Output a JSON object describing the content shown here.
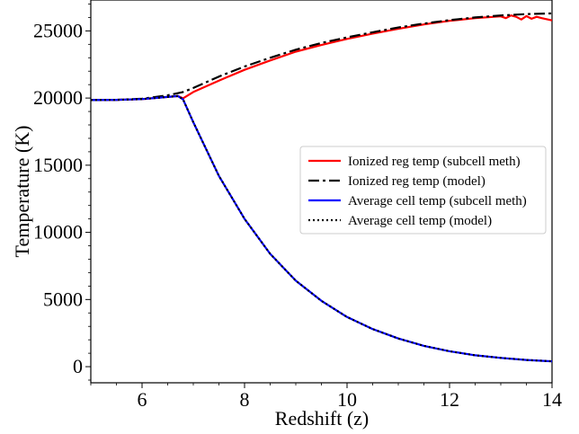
{
  "chart_data": {
    "type": "line",
    "title": "",
    "xlabel": "Redshift (z)",
    "ylabel": "Temperature (K)",
    "xlim": [
      5,
      14
    ],
    "ylim": [
      -1200,
      27300
    ],
    "x_ticks": [
      6,
      8,
      10,
      12,
      14
    ],
    "y_ticks": [
      0,
      5000,
      10000,
      15000,
      20000,
      25000
    ],
    "grid": false,
    "legend_position": "center-right",
    "series": [
      {
        "name": "Ionized reg temp (subcell meth)",
        "color": "#ff0000",
        "style": "solid",
        "x": [
          5.0,
          5.5,
          6.0,
          6.5,
          6.7,
          6.8,
          7.0,
          7.5,
          8.0,
          8.5,
          9.0,
          9.5,
          10.0,
          10.5,
          11.0,
          11.5,
          12.0,
          12.5,
          13.0,
          13.1,
          13.2,
          13.3,
          13.4,
          13.5,
          13.6,
          13.7,
          13.8,
          14.0
        ],
        "y": [
          19850,
          19870,
          19920,
          20080,
          20150,
          19980,
          20450,
          21300,
          22100,
          22800,
          23450,
          23950,
          24400,
          24800,
          25150,
          25480,
          25750,
          25950,
          26080,
          25950,
          26150,
          26050,
          25850,
          26100,
          25900,
          26050,
          25950,
          25780
        ]
      },
      {
        "name": "Ionized reg temp (model)",
        "color": "#000000",
        "style": "dashdot",
        "x": [
          5.0,
          5.5,
          6.0,
          6.5,
          6.8,
          7.0,
          7.5,
          8.0,
          8.5,
          9.0,
          9.5,
          10.0,
          10.5,
          11.0,
          11.5,
          12.0,
          12.5,
          13.0,
          13.5,
          14.0
        ],
        "y": [
          19850,
          19870,
          19950,
          20200,
          20450,
          20750,
          21600,
          22350,
          23000,
          23600,
          24100,
          24520,
          24900,
          25250,
          25550,
          25800,
          26000,
          26150,
          26250,
          26300
        ]
      },
      {
        "name": "Average cell temp (subcell meth)",
        "color": "#0000ff",
        "style": "solid",
        "x": [
          5.0,
          5.5,
          6.0,
          6.5,
          6.7,
          6.8,
          7.0,
          7.5,
          8.0,
          8.5,
          9.0,
          9.5,
          10.0,
          10.5,
          11.0,
          11.5,
          12.0,
          12.5,
          13.0,
          13.5,
          14.0
        ],
        "y": [
          19850,
          19870,
          19920,
          20080,
          20150,
          19900,
          18200,
          14200,
          11000,
          8400,
          6400,
          4900,
          3700,
          2800,
          2100,
          1550,
          1150,
          850,
          650,
          500,
          400
        ]
      },
      {
        "name": "Average cell temp (model)",
        "color": "#000000",
        "style": "dotted",
        "x": [
          5.0,
          5.5,
          6.0,
          6.5,
          6.7,
          6.8,
          7.0,
          7.5,
          8.0,
          8.5,
          9.0,
          9.5,
          10.0,
          10.5,
          11.0,
          11.5,
          12.0,
          12.5,
          13.0,
          13.5,
          14.0
        ],
        "y": [
          19850,
          19870,
          19920,
          20080,
          20150,
          19900,
          18200,
          14200,
          11000,
          8400,
          6400,
          4900,
          3700,
          2800,
          2100,
          1550,
          1150,
          850,
          650,
          500,
          400
        ]
      }
    ]
  }
}
